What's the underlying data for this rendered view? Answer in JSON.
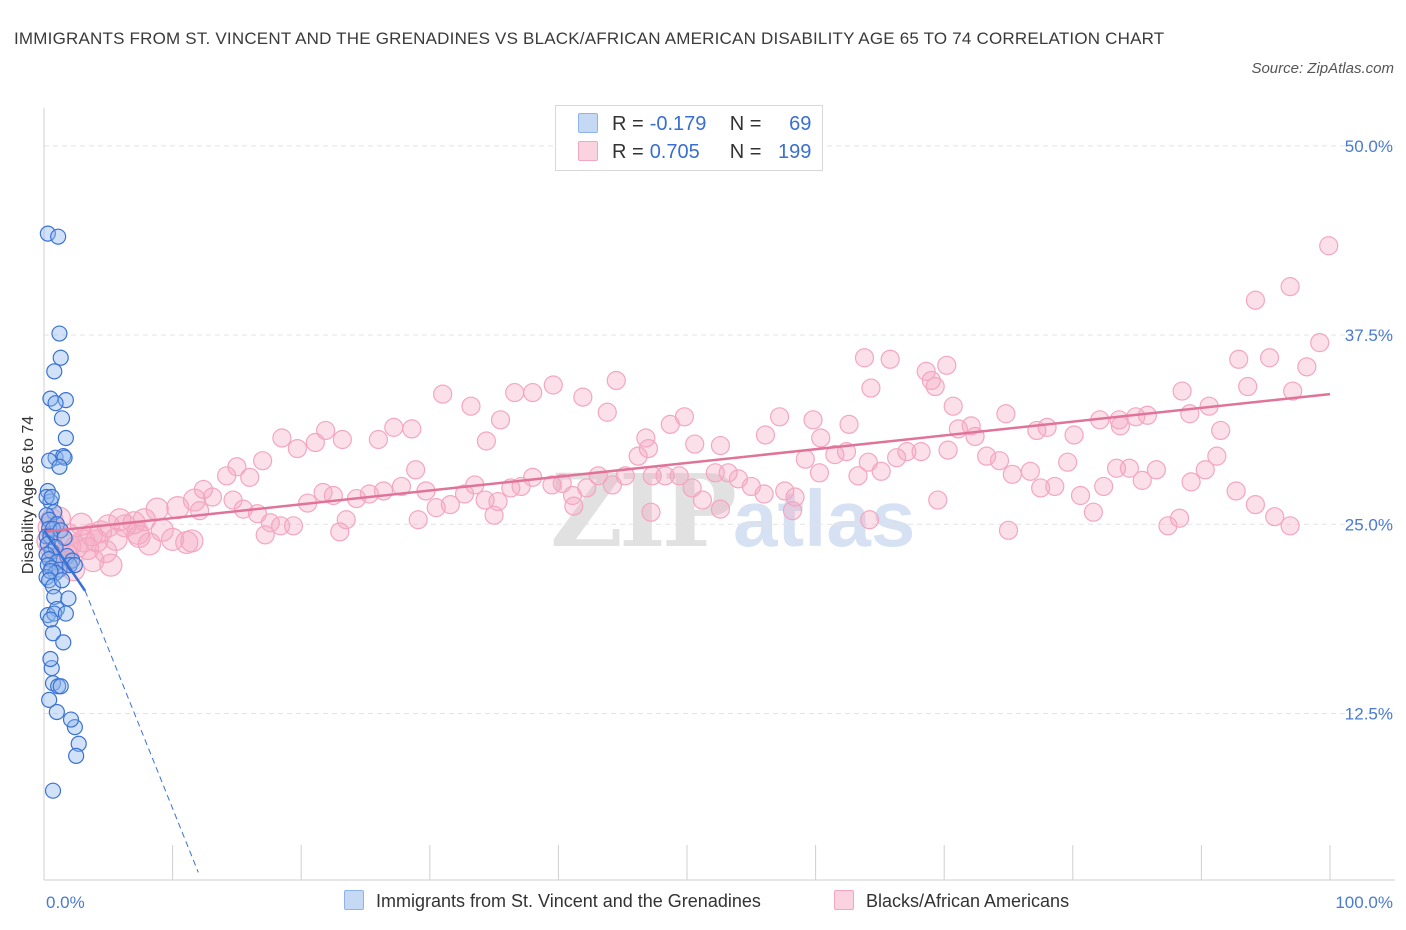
{
  "title": "IMMIGRANTS FROM ST. VINCENT AND THE GRENADINES VS BLACK/AFRICAN AMERICAN DISABILITY AGE 65 TO 74 CORRELATION CHART",
  "source": "Source: ZipAtlas.com",
  "watermark": {
    "zip": "ZIP",
    "atlas": "atlas"
  },
  "colors": {
    "blue": "#8db4ea",
    "blue_line": "#3a72d4",
    "pink": "#f4a6c0",
    "pink_line": "#e0739a"
  },
  "legend": {
    "r_label": "R =",
    "n_label": "N =",
    "series": [
      {
        "name": "Immigrants from St. Vincent and the Grenadines",
        "r": "-0.179",
        "n": "69"
      },
      {
        "name": "Blacks/African Americans",
        "r": "0.705",
        "n": "199"
      }
    ]
  },
  "chart_data": {
    "type": "scatter",
    "title": "IMMIGRANTS FROM ST. VINCENT AND THE GRENADINES VS BLACK/AFRICAN AMERICAN DISABILITY AGE 65 TO 74 CORRELATION CHART",
    "xlabel": "",
    "ylabel": "Disability Age 65 to 74",
    "xlim": [
      0,
      100
    ],
    "ylim": [
      1.5,
      52.5
    ],
    "x_tick_labels": [
      "0.0%",
      "100.0%"
    ],
    "y_ticks": [
      12.5,
      25.0,
      37.5,
      50.0
    ],
    "y_tick_labels": [
      "12.5%",
      "25.0%",
      "37.5%",
      "50.0%"
    ],
    "grid": true,
    "legend_position": "top-center",
    "series": [
      {
        "name": "Immigrants from St. Vincent and the Grenadines",
        "trend": {
          "x": [
            0.0,
            3.2
          ],
          "y": [
            24.6,
            20.6
          ]
        },
        "trend_extension": {
          "x": [
            3.2,
            12.0
          ],
          "y": [
            20.6,
            2.0
          ]
        },
        "points": [
          [
            0.3,
            44.2
          ],
          [
            1.1,
            44.0
          ],
          [
            1.2,
            37.6
          ],
          [
            1.3,
            36.0
          ],
          [
            0.8,
            35.1
          ],
          [
            0.5,
            33.3
          ],
          [
            1.7,
            33.2
          ],
          [
            0.9,
            33.0
          ],
          [
            1.4,
            32.0
          ],
          [
            1.7,
            30.7
          ],
          [
            0.9,
            29.4
          ],
          [
            1.5,
            29.5
          ],
          [
            1.6,
            29.4
          ],
          [
            0.4,
            29.2
          ],
          [
            1.2,
            28.8
          ],
          [
            0.3,
            27.2
          ],
          [
            0.5,
            26.5
          ],
          [
            0.2,
            26.8
          ],
          [
            0.6,
            26.8
          ],
          [
            0.8,
            25.8
          ],
          [
            0.2,
            25.6
          ],
          [
            0.4,
            25.3
          ],
          [
            1.0,
            25.0
          ],
          [
            0.4,
            24.7
          ],
          [
            0.7,
            24.7
          ],
          [
            1.3,
            24.6
          ],
          [
            0.2,
            24.2
          ],
          [
            0.5,
            24.2
          ],
          [
            1.6,
            24.1
          ],
          [
            0.3,
            23.7
          ],
          [
            0.6,
            23.2
          ],
          [
            0.9,
            23.5
          ],
          [
            0.2,
            23.0
          ],
          [
            1.8,
            22.9
          ],
          [
            0.4,
            22.7
          ],
          [
            1.0,
            22.5
          ],
          [
            2.2,
            22.6
          ],
          [
            0.3,
            22.3
          ],
          [
            0.6,
            22.1
          ],
          [
            1.2,
            22.0
          ],
          [
            0.9,
            21.8
          ],
          [
            0.2,
            21.5
          ],
          [
            0.5,
            21.9
          ],
          [
            0.4,
            21.3
          ],
          [
            0.7,
            20.9
          ],
          [
            1.4,
            21.3
          ],
          [
            2.0,
            22.3
          ],
          [
            2.4,
            22.3
          ],
          [
            0.8,
            20.2
          ],
          [
            1.9,
            20.1
          ],
          [
            1.0,
            19.4
          ],
          [
            0.3,
            19.0
          ],
          [
            0.8,
            19.1
          ],
          [
            1.7,
            19.1
          ],
          [
            0.5,
            18.7
          ],
          [
            0.7,
            17.8
          ],
          [
            1.5,
            17.2
          ],
          [
            0.6,
            15.5
          ],
          [
            0.7,
            14.5
          ],
          [
            1.1,
            14.3
          ],
          [
            1.3,
            14.3
          ],
          [
            0.4,
            13.4
          ],
          [
            1.0,
            12.6
          ],
          [
            2.4,
            11.6
          ],
          [
            2.7,
            10.5
          ],
          [
            2.5,
            9.7
          ],
          [
            0.7,
            7.4
          ],
          [
            2.1,
            12.1
          ],
          [
            0.5,
            16.1
          ]
        ]
      },
      {
        "name": "Blacks/African Americans",
        "trend": {
          "x": [
            0.0,
            100.0
          ],
          "y": [
            24.5,
            33.6
          ]
        },
        "points": [
          [
            99.9,
            43.4
          ],
          [
            96.9,
            40.7
          ],
          [
            94.2,
            39.8
          ],
          [
            99.2,
            37.0
          ],
          [
            98.2,
            35.4
          ],
          [
            95.3,
            36.0
          ],
          [
            92.9,
            35.9
          ],
          [
            93.6,
            34.1
          ],
          [
            97.1,
            33.8
          ],
          [
            90.6,
            32.8
          ],
          [
            88.5,
            33.8
          ],
          [
            89.1,
            32.3
          ],
          [
            91.5,
            31.2
          ],
          [
            85.8,
            32.2
          ],
          [
            84.9,
            32.1
          ],
          [
            83.6,
            31.9
          ],
          [
            82.1,
            31.9
          ],
          [
            83.7,
            31.5
          ],
          [
            80.1,
            30.9
          ],
          [
            78.0,
            31.4
          ],
          [
            77.2,
            31.2
          ],
          [
            74.8,
            32.3
          ],
          [
            72.1,
            31.5
          ],
          [
            70.7,
            32.8
          ],
          [
            69.0,
            34.5
          ],
          [
            68.6,
            35.1
          ],
          [
            70.2,
            35.5
          ],
          [
            69.3,
            34.1
          ],
          [
            65.8,
            35.9
          ],
          [
            64.3,
            34.0
          ],
          [
            63.8,
            36.0
          ],
          [
            62.6,
            31.6
          ],
          [
            60.4,
            30.7
          ],
          [
            59.8,
            31.9
          ],
          [
            57.2,
            32.1
          ],
          [
            56.1,
            30.9
          ],
          [
            52.6,
            30.2
          ],
          [
            50.6,
            30.3
          ],
          [
            49.8,
            32.1
          ],
          [
            48.7,
            31.6
          ],
          [
            46.8,
            30.7
          ],
          [
            47.0,
            30.0
          ],
          [
            44.5,
            34.5
          ],
          [
            43.8,
            32.4
          ],
          [
            41.9,
            33.4
          ],
          [
            39.6,
            34.2
          ],
          [
            38.0,
            33.7
          ],
          [
            36.6,
            33.7
          ],
          [
            35.5,
            31.9
          ],
          [
            34.4,
            30.5
          ],
          [
            33.2,
            32.8
          ],
          [
            31.0,
            33.6
          ],
          [
            28.6,
            31.3
          ],
          [
            27.2,
            31.4
          ],
          [
            26.0,
            30.6
          ],
          [
            23.2,
            30.6
          ],
          [
            21.9,
            31.2
          ],
          [
            21.1,
            30.4
          ],
          [
            19.7,
            30.0
          ],
          [
            18.5,
            30.7
          ],
          [
            17.0,
            29.2
          ],
          [
            16.0,
            28.1
          ],
          [
            15.0,
            28.8
          ],
          [
            14.2,
            28.2
          ],
          [
            12.4,
            27.3
          ],
          [
            11.7,
            26.6
          ],
          [
            10.4,
            26.1
          ],
          [
            8.8,
            26.0
          ],
          [
            7.8,
            25.3
          ],
          [
            7.0,
            25.1
          ],
          [
            5.9,
            25.3
          ],
          [
            5.0,
            24.9
          ],
          [
            4.4,
            24.5
          ],
          [
            3.7,
            24.3
          ],
          [
            3.1,
            23.9
          ],
          [
            2.5,
            23.5
          ],
          [
            2.0,
            23.6
          ],
          [
            1.7,
            23.0
          ],
          [
            1.4,
            22.9
          ],
          [
            1.0,
            22.7
          ],
          [
            0.8,
            22.4
          ],
          [
            0.5,
            23.5
          ],
          [
            0.3,
            23.9
          ],
          [
            0.9,
            24.6
          ],
          [
            0.6,
            25.3
          ],
          [
            0.4,
            24.8
          ],
          [
            1.2,
            25.4
          ],
          [
            1.9,
            24.3
          ],
          [
            2.9,
            25.0
          ],
          [
            3.4,
            23.4
          ],
          [
            4.1,
            23.9
          ],
          [
            4.8,
            23.2
          ],
          [
            5.6,
            24.0
          ],
          [
            6.3,
            24.9
          ],
          [
            7.3,
            24.4
          ],
          [
            8.2,
            23.7
          ],
          [
            9.2,
            24.6
          ],
          [
            10.0,
            24.0
          ],
          [
            11.1,
            23.8
          ],
          [
            12.1,
            25.9
          ],
          [
            13.1,
            26.8
          ],
          [
            14.7,
            26.6
          ],
          [
            15.5,
            26.0
          ],
          [
            16.6,
            25.7
          ],
          [
            17.6,
            25.1
          ],
          [
            18.4,
            24.9
          ],
          [
            19.4,
            24.9
          ],
          [
            20.5,
            26.4
          ],
          [
            21.7,
            27.1
          ],
          [
            22.5,
            26.9
          ],
          [
            23.5,
            25.3
          ],
          [
            24.3,
            26.7
          ],
          [
            25.3,
            27.0
          ],
          [
            26.4,
            27.2
          ],
          [
            27.8,
            27.5
          ],
          [
            28.9,
            28.6
          ],
          [
            29.7,
            27.2
          ],
          [
            30.5,
            26.1
          ],
          [
            31.6,
            26.3
          ],
          [
            32.7,
            27.0
          ],
          [
            33.5,
            27.6
          ],
          [
            34.3,
            26.6
          ],
          [
            35.3,
            26.5
          ],
          [
            36.3,
            27.4
          ],
          [
            37.1,
            27.5
          ],
          [
            38.0,
            28.1
          ],
          [
            39.5,
            27.6
          ],
          [
            40.3,
            27.7
          ],
          [
            41.1,
            26.9
          ],
          [
            42.2,
            27.4
          ],
          [
            43.1,
            28.2
          ],
          [
            44.2,
            27.6
          ],
          [
            45.2,
            28.2
          ],
          [
            46.2,
            29.5
          ],
          [
            47.3,
            28.2
          ],
          [
            48.3,
            28.2
          ],
          [
            49.4,
            28.2
          ],
          [
            50.4,
            27.4
          ],
          [
            51.2,
            26.6
          ],
          [
            52.2,
            28.4
          ],
          [
            53.2,
            28.4
          ],
          [
            54.0,
            28.0
          ],
          [
            55.0,
            27.5
          ],
          [
            56.0,
            27.0
          ],
          [
            57.6,
            27.2
          ],
          [
            58.4,
            26.8
          ],
          [
            59.2,
            29.3
          ],
          [
            60.3,
            28.4
          ],
          [
            61.5,
            29.6
          ],
          [
            62.4,
            29.8
          ],
          [
            63.3,
            28.2
          ],
          [
            64.1,
            29.1
          ],
          [
            65.1,
            28.5
          ],
          [
            66.3,
            29.4
          ],
          [
            67.1,
            29.8
          ],
          [
            68.2,
            29.8
          ],
          [
            69.5,
            26.6
          ],
          [
            70.3,
            29.9
          ],
          [
            71.1,
            31.3
          ],
          [
            72.4,
            30.8
          ],
          [
            73.3,
            29.5
          ],
          [
            74.3,
            29.2
          ],
          [
            75.3,
            28.3
          ],
          [
            76.7,
            28.5
          ],
          [
            77.5,
            27.4
          ],
          [
            78.6,
            27.5
          ],
          [
            79.6,
            29.1
          ],
          [
            80.6,
            26.9
          ],
          [
            81.6,
            25.8
          ],
          [
            82.4,
            27.5
          ],
          [
            83.4,
            28.7
          ],
          [
            84.4,
            28.7
          ],
          [
            85.4,
            27.9
          ],
          [
            86.5,
            28.6
          ],
          [
            87.4,
            24.9
          ],
          [
            88.3,
            25.4
          ],
          [
            89.2,
            27.8
          ],
          [
            90.3,
            28.6
          ],
          [
            91.2,
            29.5
          ],
          [
            92.7,
            27.2
          ],
          [
            94.2,
            26.3
          ],
          [
            95.7,
            25.5
          ],
          [
            96.9,
            24.9
          ],
          [
            75.0,
            24.6
          ],
          [
            64.2,
            25.3
          ],
          [
            58.2,
            25.9
          ],
          [
            52.6,
            26.0
          ],
          [
            47.2,
            25.8
          ],
          [
            41.2,
            26.2
          ],
          [
            35.0,
            25.6
          ],
          [
            29.1,
            25.3
          ],
          [
            23.0,
            24.5
          ],
          [
            17.2,
            24.3
          ],
          [
            11.5,
            23.9
          ],
          [
            7.4,
            24.2
          ],
          [
            5.2,
            22.3
          ],
          [
            3.8,
            22.6
          ],
          [
            2.3,
            22.0
          ],
          [
            1.6,
            22.5
          ]
        ]
      }
    ]
  }
}
